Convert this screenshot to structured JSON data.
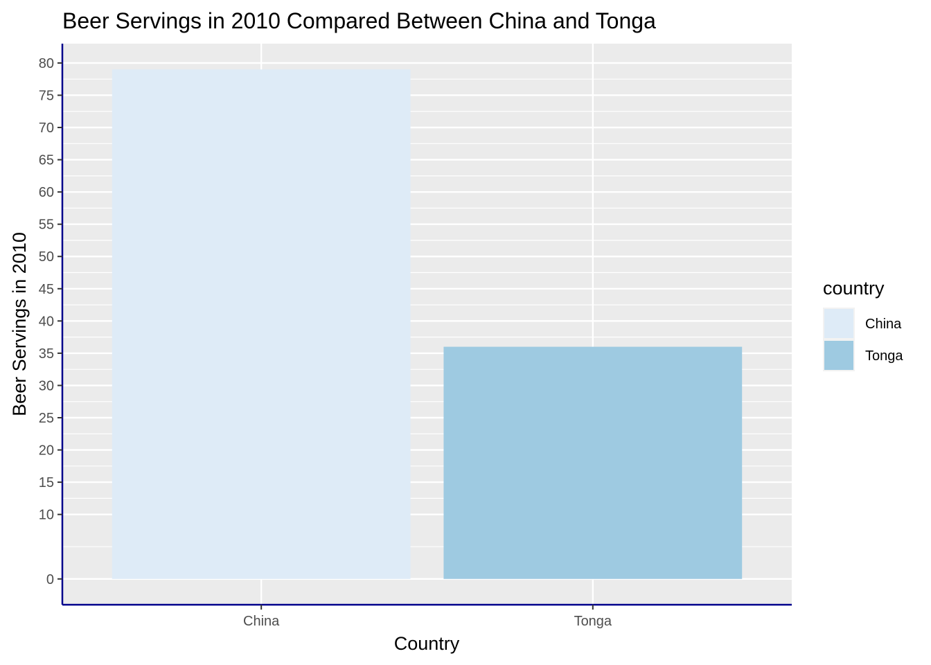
{
  "chart_data": {
    "type": "bar",
    "title": "Beer Servings in 2010 Compared Between China and Tonga",
    "xlabel": "Country",
    "ylabel": "Beer Servings in 2010",
    "categories": [
      "China",
      "Tonga"
    ],
    "values": [
      79,
      36
    ],
    "colors": [
      "#deebf7",
      "#9ecae1"
    ],
    "ylim": [
      -4,
      83
    ],
    "yticks": [
      0,
      10,
      15,
      20,
      25,
      30,
      35,
      40,
      45,
      50,
      55,
      60,
      65,
      70,
      75,
      80
    ],
    "grid": true,
    "panel_background": "#ebebeb",
    "axis_line_color": "#00008b",
    "legend": {
      "title": "country",
      "position": "right",
      "entries": [
        "China",
        "Tonga"
      ]
    }
  }
}
